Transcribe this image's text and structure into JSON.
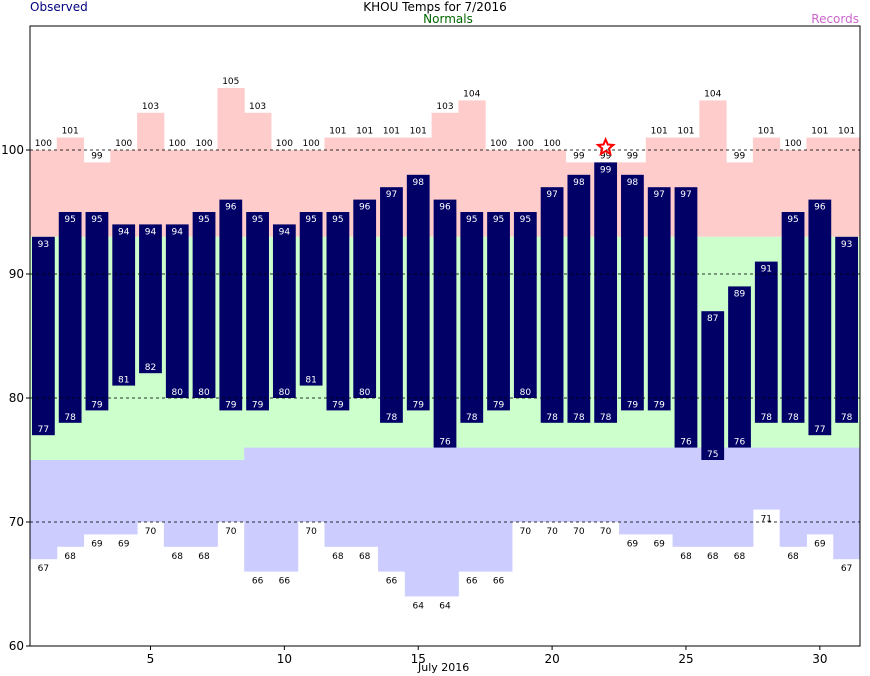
{
  "chart_data": {
    "type": "bar",
    "title": "KHOU Temps for 7/2016",
    "legend": {
      "observed": "Observed",
      "normals": "Normals",
      "records": "Records"
    },
    "xlabel": "July 2016",
    "x_ticks": [
      5,
      10,
      15,
      20,
      25,
      30
    ],
    "y_ticks": [
      60,
      70,
      80,
      90,
      100
    ],
    "ylim": [
      60,
      110
    ],
    "xlim": [
      0.5,
      31.5
    ],
    "days": [
      1,
      2,
      3,
      4,
      5,
      6,
      7,
      8,
      9,
      10,
      11,
      12,
      13,
      14,
      15,
      16,
      17,
      18,
      19,
      20,
      21,
      22,
      23,
      24,
      25,
      26,
      27,
      28,
      29,
      30,
      31
    ],
    "observed_high": [
      93,
      95,
      95,
      94,
      94,
      94,
      95,
      96,
      95,
      94,
      95,
      95,
      96,
      97,
      98,
      96,
      95,
      95,
      95,
      97,
      98,
      99,
      98,
      97,
      97,
      87,
      89,
      91,
      95,
      96,
      93
    ],
    "observed_low": [
      77,
      78,
      79,
      81,
      82,
      80,
      80,
      79,
      79,
      80,
      81,
      79,
      80,
      78,
      79,
      76,
      78,
      79,
      80,
      78,
      78,
      78,
      79,
      79,
      76,
      75,
      76,
      78,
      78,
      77,
      78
    ],
    "record_high": [
      100,
      101,
      99,
      100,
      103,
      100,
      100,
      105,
      103,
      100,
      100,
      101,
      101,
      101,
      101,
      103,
      104,
      100,
      100,
      100,
      99,
      99,
      99,
      101,
      101,
      104,
      99,
      101,
      100,
      101,
      101
    ],
    "record_low": [
      67,
      68,
      69,
      69,
      70,
      68,
      68,
      70,
      66,
      66,
      70,
      68,
      68,
      66,
      64,
      64,
      66,
      66,
      70,
      70,
      70,
      70,
      69,
      69,
      68,
      68,
      68,
      71,
      68,
      69,
      67
    ],
    "normal_high": [
      93,
      93,
      93,
      93,
      93,
      93,
      93,
      93,
      93,
      93,
      93,
      93,
      93,
      93,
      93,
      93,
      93,
      93,
      93,
      93,
      93,
      93,
      93,
      93,
      93,
      93,
      93,
      93,
      93,
      93,
      93
    ],
    "normal_low": [
      75,
      75,
      75,
      75,
      75,
      75,
      75,
      75,
      76,
      76,
      76,
      76,
      76,
      76,
      76,
      76,
      76,
      76,
      76,
      76,
      76,
      76,
      76,
      76,
      76,
      76,
      76,
      76,
      76,
      76,
      76
    ],
    "record_marker_day": 22,
    "colors": {
      "observed": "#000066",
      "records_high_fill": "#ffcccc",
      "records_low_fill": "#ccccff",
      "normals_fill": "#ccffcc",
      "observed_label": "#000080",
      "normals_label": "#006600",
      "records_label": "#cc66cc",
      "marker": "#ff0000"
    },
    "grid": "dashed at 70, 80, 90, 100"
  }
}
